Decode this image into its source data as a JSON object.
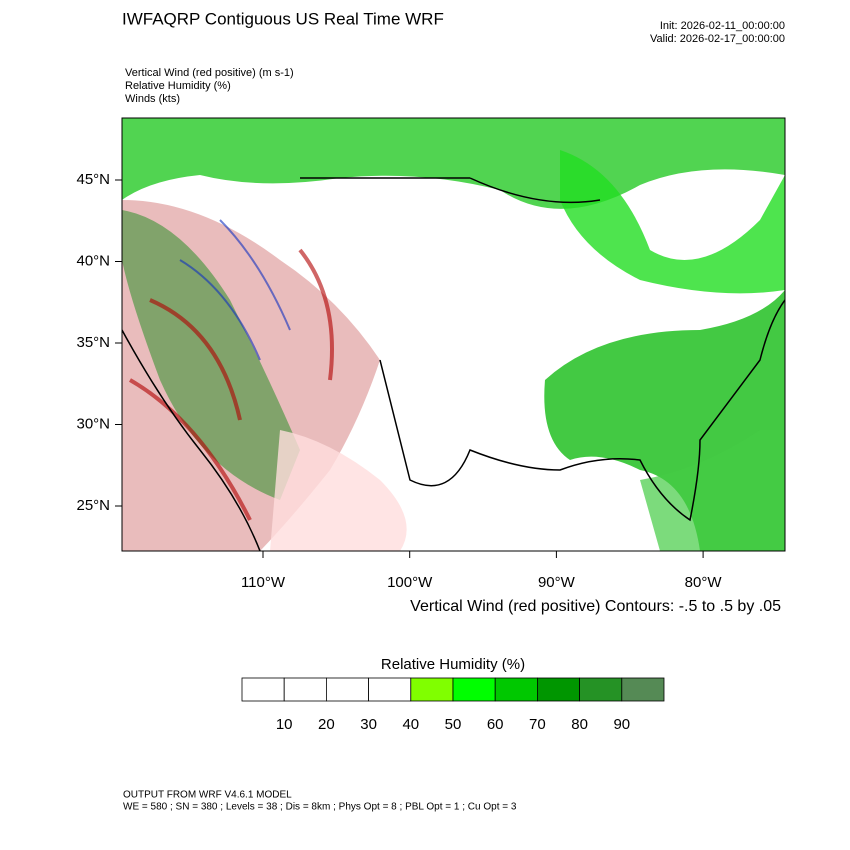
{
  "header": {
    "title": "IWFAQRP Contiguous US Real Time WRF",
    "init": "Init: 2026-02-11_00:00:00",
    "valid": "Valid: 2026-02-17_00:00:00"
  },
  "fields": [
    "Vertical Wind (red positive)   (m s-1)",
    "Relative Humidity   (%)",
    "Winds   (kts)"
  ],
  "map": {
    "lat_labels": [
      "45°N",
      "40°N",
      "35°N",
      "30°N",
      "25°N"
    ],
    "lon_labels": [
      "110°W",
      "100°W",
      "90°W",
      "80°W"
    ],
    "contour_note": "Vertical Wind (red positive) Contours: -.5 to .5 by .05"
  },
  "colorbar": {
    "title": "Relative Humidity  (%)",
    "labels": [
      10,
      20,
      30,
      40,
      50,
      60,
      70,
      80,
      90
    ],
    "colors": [
      "#ffffff",
      "#ffffff",
      "#ffffff",
      "#ffffff",
      "#80ff00",
      "#00ff00",
      "#00c800",
      "#009600",
      "#259225",
      "#558a55"
    ]
  },
  "footer": {
    "line1": "OUTPUT FROM WRF V4.6.1 MODEL",
    "line2": "WE = 580 ; SN = 380 ; Levels = 38 ; Dis = 8km ; Phys Opt = 8 ; PBL Opt = 1 ; Cu Opt = 3"
  }
}
